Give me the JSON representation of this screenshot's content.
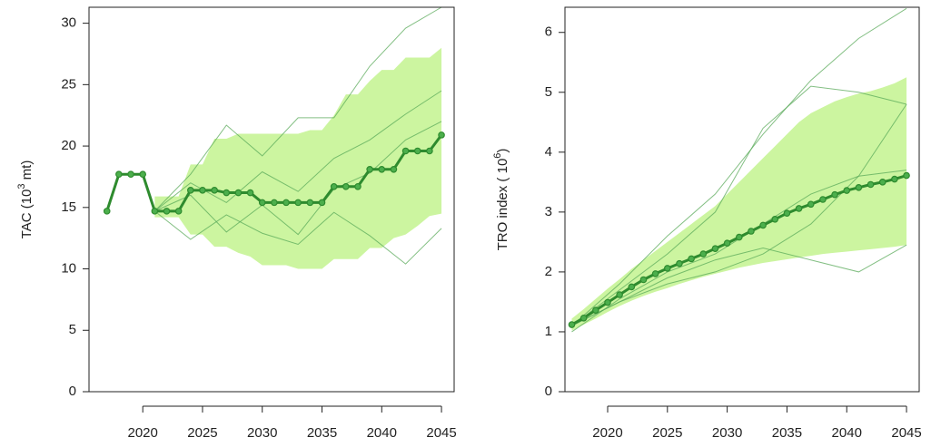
{
  "chart_data": [
    {
      "type": "line",
      "ylabel": [
        "TAC (10",
        "3",
        " mt)"
      ],
      "xlim": [
        2015.5,
        2046.06
      ],
      "ylim": [
        0,
        31.3
      ],
      "xticks": [
        2020,
        2025,
        2030,
        2035,
        2040,
        2045
      ],
      "yticks": [
        0,
        5,
        10,
        15,
        20,
        25,
        30
      ],
      "band": {
        "color": "#ccf5a0",
        "x": [
          2021,
          2022,
          2023,
          2024,
          2025,
          2026,
          2027,
          2028,
          2029,
          2030,
          2031,
          2032,
          2033,
          2034,
          2035,
          2036,
          2037,
          2038,
          2039,
          2040,
          2041,
          2042,
          2043,
          2044,
          2045
        ],
        "upper": [
          15.9,
          15.9,
          15.9,
          18.5,
          18.5,
          20.6,
          20.6,
          21,
          21,
          21,
          21,
          21,
          21,
          21.3,
          21.3,
          22.5,
          24.2,
          24.2,
          25.3,
          26.2,
          26.2,
          27.2,
          27.2,
          27.2,
          28
        ],
        "lower": [
          14.2,
          14.2,
          14.2,
          12.8,
          12.8,
          11.8,
          11.8,
          11.3,
          11,
          10.3,
          10.3,
          10.3,
          10,
          10,
          10,
          10.8,
          10.8,
          10.8,
          11.7,
          11.7,
          12.5,
          12.8,
          13.5,
          14.3,
          14.5
        ]
      },
      "trajectories": {
        "color": "#5aaa5a",
        "series": [
          {
            "x": [
              2021,
              2024,
              2027,
              2030,
              2033,
              2036,
              2039,
              2042,
              2045
            ],
            "values": [
              14.7,
              17.7,
              21.7,
              19.2,
              22.3,
              22.3,
              26.5,
              29.6,
              31.3
            ]
          },
          {
            "x": [
              2021,
              2024,
              2027,
              2030,
              2033,
              2036,
              2039,
              2042,
              2045
            ],
            "values": [
              14.7,
              12.4,
              14.4,
              12.9,
              12.0,
              14.6,
              12.7,
              10.4,
              13.3
            ]
          },
          {
            "x": [
              2021,
              2024,
              2027,
              2030,
              2033,
              2036,
              2039,
              2042,
              2045
            ],
            "values": [
              14.7,
              17.0,
              15.4,
              17.9,
              16.3,
              19.0,
              20.5,
              22.6,
              24.5
            ]
          },
          {
            "x": [
              2021,
              2024,
              2027,
              2030,
              2033,
              2036,
              2039,
              2042,
              2045
            ],
            "values": [
              14.7,
              16.0,
              13.0,
              15.2,
              12.8,
              16.5,
              17.8,
              20.5,
              22.0
            ]
          }
        ]
      },
      "median": {
        "color": "#2e8b2e",
        "x": [
          2017,
          2018,
          2019,
          2020,
          2021,
          2022,
          2023,
          2024,
          2025,
          2026,
          2027,
          2028,
          2029,
          2030,
          2031,
          2032,
          2033,
          2034,
          2035,
          2036,
          2037,
          2038,
          2039,
          2040,
          2041,
          2042,
          2043,
          2044,
          2045
        ],
        "values": [
          14.7,
          17.7,
          17.7,
          17.7,
          14.7,
          14.7,
          14.7,
          16.4,
          16.4,
          16.4,
          16.2,
          16.2,
          16.2,
          15.4,
          15.4,
          15.4,
          15.4,
          15.4,
          15.4,
          16.7,
          16.7,
          16.7,
          18.1,
          18.1,
          18.1,
          19.6,
          19.6,
          19.6,
          20.9
        ]
      }
    },
    {
      "type": "line",
      "ylabel": [
        "TRO index ( 10",
        "6",
        ")"
      ],
      "xlim": [
        2016.43,
        2046.06
      ],
      "ylim": [
        0,
        6.42
      ],
      "xticks": [
        2020,
        2025,
        2030,
        2035,
        2040,
        2045
      ],
      "yticks": [
        0,
        1,
        2,
        3,
        4,
        5,
        6
      ],
      "band": {
        "color": "#ccf5a0",
        "x": [
          2017,
          2018,
          2019,
          2020,
          2021,
          2022,
          2023,
          2024,
          2025,
          2026,
          2027,
          2028,
          2029,
          2030,
          2031,
          2032,
          2033,
          2034,
          2035,
          2036,
          2037,
          2038,
          2039,
          2040,
          2041,
          2042,
          2043,
          2044,
          2045
        ],
        "upper": [
          1.22,
          1.38,
          1.55,
          1.72,
          1.88,
          2.05,
          2.2,
          2.35,
          2.5,
          2.65,
          2.8,
          2.95,
          3.1,
          3.3,
          3.5,
          3.7,
          3.9,
          4.1,
          4.3,
          4.5,
          4.65,
          4.75,
          4.85,
          4.92,
          4.98,
          5.02,
          5.08,
          5.15,
          5.25
        ],
        "lower": [
          1.02,
          1.12,
          1.22,
          1.33,
          1.43,
          1.52,
          1.6,
          1.67,
          1.73,
          1.8,
          1.86,
          1.92,
          1.97,
          2.02,
          2.07,
          2.11,
          2.15,
          2.18,
          2.21,
          2.24,
          2.27,
          2.3,
          2.32,
          2.34,
          2.36,
          2.38,
          2.4,
          2.42,
          2.45
        ]
      },
      "trajectories": {
        "color": "#5aaa5a",
        "series": [
          {
            "x": [
              2017,
              2021,
              2025,
              2029,
              2033,
              2037,
              2041,
              2045
            ],
            "values": [
              1.1,
              1.8,
              2.6,
              3.3,
              4.3,
              5.2,
              5.9,
              6.4
            ]
          },
          {
            "x": [
              2017,
              2021,
              2025,
              2029,
              2033,
              2037,
              2041,
              2045
            ],
            "values": [
              1.1,
              1.5,
              1.9,
              2.2,
              2.4,
              2.2,
              2.0,
              2.45
            ]
          },
          {
            "x": [
              2017,
              2021,
              2025,
              2029,
              2033,
              2037,
              2041,
              2045
            ],
            "values": [
              1.1,
              1.7,
              2.3,
              3.0,
              4.4,
              5.1,
              5.0,
              4.8
            ]
          },
          {
            "x": [
              2017,
              2021,
              2025,
              2029,
              2033,
              2037,
              2041,
              2045
            ],
            "values": [
              1.1,
              1.5,
              1.8,
              2.0,
              2.3,
              2.8,
              3.6,
              4.8
            ]
          },
          {
            "x": [
              2017,
              2021,
              2025,
              2029,
              2033,
              2037,
              2041,
              2045
            ],
            "values": [
              1.0,
              1.55,
              2.0,
              2.3,
              2.8,
              3.3,
              3.6,
              3.7
            ]
          }
        ]
      },
      "median": {
        "color": "#2e8b2e",
        "x": [
          2017,
          2018,
          2019,
          2020,
          2021,
          2022,
          2023,
          2024,
          2025,
          2026,
          2027,
          2028,
          2029,
          2030,
          2031,
          2032,
          2033,
          2034,
          2035,
          2036,
          2037,
          2038,
          2039,
          2040,
          2041,
          2042,
          2043,
          2044,
          2045
        ],
        "values": [
          1.12,
          1.23,
          1.36,
          1.49,
          1.62,
          1.75,
          1.87,
          1.97,
          2.06,
          2.14,
          2.22,
          2.3,
          2.39,
          2.48,
          2.58,
          2.68,
          2.78,
          2.88,
          2.98,
          3.06,
          3.13,
          3.21,
          3.29,
          3.36,
          3.41,
          3.46,
          3.5,
          3.55,
          3.61
        ]
      }
    }
  ]
}
